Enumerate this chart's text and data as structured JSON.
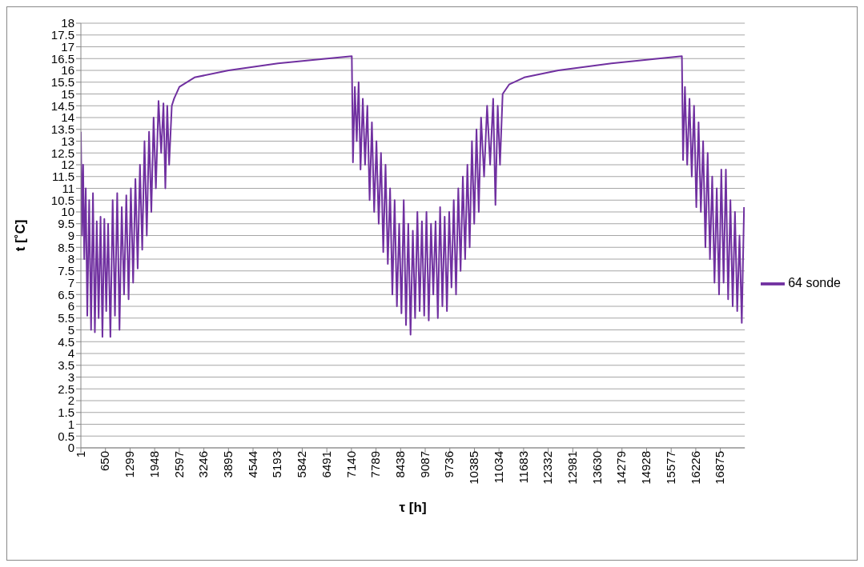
{
  "chart_data": {
    "type": "line",
    "xlabel": "τ [h]",
    "ylabel": "t [˚C]",
    "xlim": [
      1,
      17520
    ],
    "xticks": [
      1,
      650,
      1299,
      1948,
      2597,
      3246,
      3895,
      4544,
      5193,
      5842,
      6491,
      7140,
      7789,
      8438,
      9087,
      9736,
      10385,
      11034,
      11683,
      12332,
      12981,
      13630,
      14279,
      14928,
      15577,
      16226,
      16875
    ],
    "ylim": [
      0,
      18
    ],
    "yticks": [
      0,
      0.5,
      1,
      1.5,
      2,
      2.5,
      3,
      3.5,
      4,
      4.5,
      5,
      5.5,
      6,
      6.5,
      7,
      7.5,
      8,
      8.5,
      9,
      9.5,
      10,
      10.5,
      11,
      11.5,
      12,
      12.5,
      13,
      13.5,
      14,
      14.5,
      15,
      15.5,
      16,
      16.5,
      17,
      17.5,
      18
    ],
    "grid": "y",
    "legend": "right",
    "x": [
      1,
      30,
      60,
      90,
      130,
      170,
      220,
      270,
      320,
      370,
      420,
      470,
      520,
      570,
      620,
      670,
      720,
      780,
      840,
      900,
      960,
      1020,
      1080,
      1140,
      1200,
      1260,
      1320,
      1380,
      1440,
      1500,
      1560,
      1620,
      1680,
      1740,
      1800,
      1860,
      1920,
      1980,
      2050,
      2120,
      2180,
      2230,
      2280,
      2330,
      2400,
      2460,
      2600,
      3000,
      3900,
      5200,
      7150,
      7180,
      7230,
      7280,
      7330,
      7380,
      7440,
      7500,
      7560,
      7620,
      7680,
      7740,
      7800,
      7860,
      7920,
      7980,
      8040,
      8100,
      8160,
      8220,
      8280,
      8340,
      8400,
      8460,
      8520,
      8580,
      8640,
      8700,
      8760,
      8820,
      8880,
      8940,
      9000,
      9060,
      9120,
      9180,
      9240,
      9300,
      9360,
      9420,
      9480,
      9540,
      9600,
      9660,
      9720,
      9780,
      9840,
      9900,
      9960,
      10020,
      10080,
      10140,
      10200,
      10260,
      10320,
      10380,
      10440,
      10500,
      10560,
      10640,
      10720,
      10800,
      10880,
      10940,
      11000,
      11060,
      11130,
      11300,
      11700,
      12600,
      14000,
      15860,
      15890,
      15940,
      16000,
      16060,
      16120,
      16180,
      16240,
      16300,
      16360,
      16420,
      16480,
      16540,
      16600,
      16660,
      16720,
      16780,
      16840,
      16900,
      16960,
      17020,
      17080,
      17140,
      17200,
      17260,
      17320,
      17380,
      17440,
      17500
    ],
    "series": [
      {
        "name": "64 sonde",
        "color": "#7030a0",
        "values": [
          13.4,
          9.0,
          12.0,
          8.0,
          11.0,
          5.6,
          10.5,
          5.0,
          10.8,
          4.9,
          9.6,
          5.5,
          9.8,
          4.7,
          9.7,
          5.8,
          9.5,
          4.7,
          10.5,
          5.6,
          10.8,
          5.0,
          10.2,
          6.5,
          10.7,
          6.3,
          11.0,
          7.0,
          11.4,
          7.6,
          12.0,
          8.4,
          13.0,
          9.0,
          13.4,
          10.0,
          14.0,
          11.0,
          14.7,
          12.5,
          14.6,
          11.0,
          14.5,
          12.0,
          14.5,
          14.8,
          15.3,
          15.7,
          16.0,
          16.3,
          16.6,
          12.1,
          15.3,
          13.0,
          15.5,
          11.8,
          14.8,
          12.0,
          14.5,
          10.5,
          13.8,
          10.0,
          13.0,
          9.5,
          12.5,
          8.3,
          12.0,
          7.8,
          11.0,
          6.5,
          10.5,
          6.0,
          9.5,
          5.7,
          10.5,
          5.2,
          9.5,
          4.8,
          9.2,
          5.5,
          10.0,
          5.8,
          9.6,
          5.6,
          10.0,
          5.4,
          9.5,
          6.5,
          9.6,
          5.5,
          10.2,
          6.0,
          9.8,
          5.8,
          10.0,
          6.8,
          10.5,
          6.5,
          11.0,
          7.5,
          11.5,
          8.0,
          12.0,
          8.5,
          13.0,
          9.5,
          13.5,
          10.0,
          14.0,
          11.5,
          14.5,
          12.0,
          14.8,
          10.3,
          14.5,
          12.0,
          15.0,
          15.4,
          15.7,
          16.0,
          16.3,
          16.6,
          12.2,
          15.3,
          12.0,
          14.8,
          11.5,
          14.5,
          10.2,
          13.8,
          10.0,
          13.0,
          8.5,
          12.5,
          8.0,
          11.5,
          7.0,
          11.0,
          6.5,
          11.8,
          7.0,
          11.8,
          6.3,
          10.5,
          6.0,
          10.0,
          5.8,
          9.0,
          5.3,
          10.2
        ]
      }
    ]
  }
}
